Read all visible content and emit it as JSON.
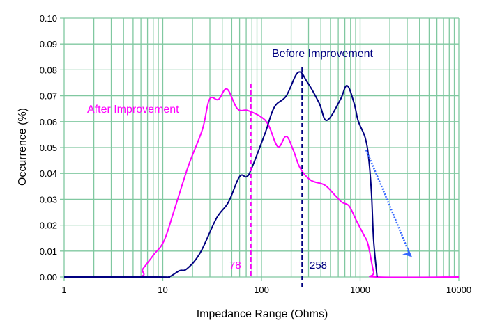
{
  "chart_data": {
    "type": "line",
    "title": "",
    "xlabel": "Impedance Range (Ohms)",
    "ylabel": "Occurrence (%)",
    "xscale": "log",
    "xlim": [
      1,
      10000
    ],
    "ylim": [
      0,
      0.1
    ],
    "grid": true,
    "x_tick_labels": [
      "1",
      "10",
      "100",
      "1000",
      "10000"
    ],
    "y_tick_labels": [
      "0.00",
      "0.01",
      "0.02",
      "0.03",
      "0.04",
      "0.05",
      "0.06",
      "0.07",
      "0.08",
      "0.09",
      "0.10"
    ],
    "series": [
      {
        "name": "After Improvement",
        "color": "#ff00ff",
        "points": [
          [
            1,
            0
          ],
          [
            5.4,
            0
          ],
          [
            6.3,
            0.0032
          ],
          [
            8.1,
            0.0086
          ],
          [
            10.3,
            0.014
          ],
          [
            13.1,
            0.026
          ],
          [
            18.2,
            0.043
          ],
          [
            25.2,
            0.057
          ],
          [
            29.7,
            0.0686
          ],
          [
            36.7,
            0.0686
          ],
          [
            44.7,
            0.0726
          ],
          [
            57,
            0.065
          ],
          [
            72.8,
            0.0643
          ],
          [
            101,
            0.0616
          ],
          [
            119,
            0.0583
          ],
          [
            147,
            0.0503
          ],
          [
            178,
            0.0543
          ],
          [
            210,
            0.049
          ],
          [
            247,
            0.042
          ],
          [
            315,
            0.0374
          ],
          [
            437,
            0.0355
          ],
          [
            558,
            0.0315
          ],
          [
            657,
            0.0288
          ],
          [
            773,
            0.0274
          ],
          [
            910,
            0.022
          ],
          [
            1072,
            0.0167
          ],
          [
            1202,
            0.0126
          ],
          [
            1368,
            0.002
          ],
          [
            1485,
            0
          ],
          [
            10000,
            0
          ]
        ]
      },
      {
        "name": "Before Improvement",
        "color": "#000080",
        "points": [
          [
            1,
            0
          ],
          [
            9.1,
            0
          ],
          [
            11.5,
            0
          ],
          [
            14.7,
            0.0024
          ],
          [
            17.6,
            0.0032
          ],
          [
            24,
            0.0094
          ],
          [
            34.9,
            0.0226
          ],
          [
            46.1,
            0.0288
          ],
          [
            59.8,
            0.0387
          ],
          [
            70.4,
            0.0387
          ],
          [
            78.9,
            0.0417
          ],
          [
            109,
            0.0556
          ],
          [
            135,
            0.0656
          ],
          [
            178,
            0.0699
          ],
          [
            235,
            0.079
          ],
          [
            291,
            0.0753
          ],
          [
            384,
            0.0672
          ],
          [
            459,
            0.0605
          ],
          [
            626,
            0.0683
          ],
          [
            736,
            0.0739
          ],
          [
            867,
            0.0672
          ],
          [
            957,
            0.0602
          ],
          [
            1125,
            0.0538
          ],
          [
            1222,
            0.0457
          ],
          [
            1303,
            0.0323
          ],
          [
            1368,
            0.0145
          ],
          [
            1485,
            0
          ]
        ]
      }
    ],
    "annotations": [
      {
        "text": "After Improvement",
        "color": "#ff00ff"
      },
      {
        "text": "Before Improvement",
        "color": "#000080"
      },
      {
        "text": "78",
        "type": "median-line",
        "x": 78,
        "color": "#ff00ff"
      },
      {
        "text": "258",
        "type": "median-line",
        "x": 258,
        "color": "#000080"
      }
    ],
    "arrow": {
      "from": [
        1150,
        0.049
      ],
      "to": [
        3200,
        0.0085
      ],
      "color": "#3366ff",
      "style": "dotted"
    },
    "grid_color": "#80c8a0"
  }
}
